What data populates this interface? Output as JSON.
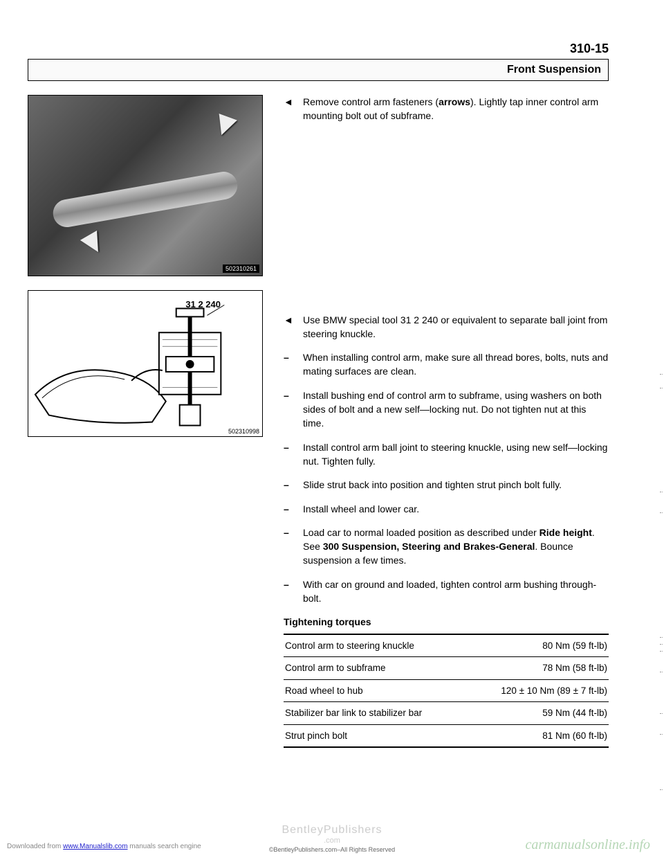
{
  "page_number": "310-15",
  "section_title": "Front Suspension",
  "figure1": {
    "id": "502310261",
    "arrows": 2
  },
  "figure2": {
    "id": "502310998",
    "tool_label": "31 2 240"
  },
  "steps": [
    {
      "mark": "◄",
      "text": "Remove control arm fasteners (<b>arrows</b>). Lightly tap inner control arm mounting bolt out of subframe."
    },
    {
      "mark": "◄",
      "text": "Use BMW special tool 31 2 240 or equivalent to separate ball joint from steering knuckle."
    },
    {
      "mark": "–",
      "text": "When installing control arm, make sure all thread bores, bolts, nuts and mating surfaces are clean."
    },
    {
      "mark": "–",
      "text": "Install bushing end of control arm to subframe, using washers on both sides of bolt and a new self—locking nut. Do not tighten nut at this time."
    },
    {
      "mark": "–",
      "text": "Install control arm ball joint to steering knuckle, using new self—locking nut. Tighten fully."
    },
    {
      "mark": "–",
      "text": "Slide strut back into position and tighten strut pinch bolt fully."
    },
    {
      "mark": "–",
      "text": "Install wheel and lower car."
    },
    {
      "mark": "–",
      "text": "Load car to normal loaded position as described under <b>Ride height</b>. See <b>300 Suspension, Steering and Brakes-General</b>. Bounce suspension a few times."
    },
    {
      "mark": "–",
      "text": "With car on ground and loaded, tighten control arm bushing through-bolt."
    }
  ],
  "torque_heading": "Tightening torques",
  "torques": [
    {
      "label": "Control arm to steering knuckle",
      "value": "80 Nm (59 ft-lb)"
    },
    {
      "label": "Control arm to subframe",
      "value": "78 Nm (58 ft-lb)"
    },
    {
      "label": "Road wheel to hub",
      "value": "120 ± 10 Nm (89 ± 7 ft-lb)"
    },
    {
      "label": "Stabilizer bar link to stabilizer bar",
      "value": "59 Nm (44 ft-lb)"
    },
    {
      "label": "Strut pinch bolt",
      "value": "81 Nm (60 ft-lb)"
    }
  ],
  "footer": {
    "download_prefix": "Downloaded from ",
    "download_link": "www.Manualslib.com",
    "download_suffix": " manuals search engine",
    "publisher": "BentleyPublishers",
    "publisher_sub": ".com",
    "rights": "©BentleyPublishers.com–All Rights Reserved",
    "watermark": "carmanualsonline.info"
  }
}
